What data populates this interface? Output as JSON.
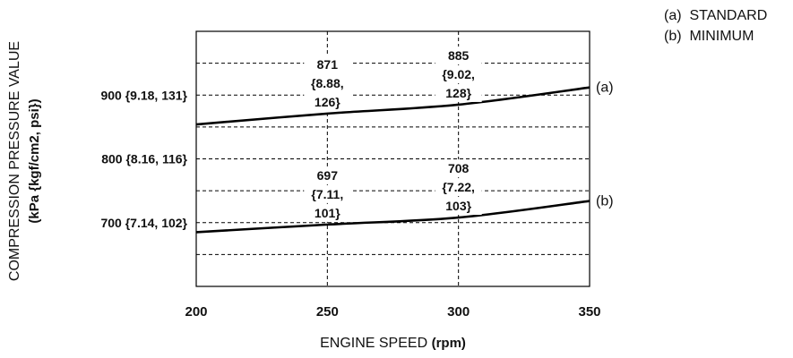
{
  "chart_data": {
    "type": "line",
    "x_axis": {
      "label": "ENGINE SPEED",
      "unit": "(rpm)",
      "range": [
        200,
        350
      ],
      "ticks": [
        "200",
        "250",
        "300",
        "350"
      ]
    },
    "y_axis": {
      "label": "COMPRESSION PRESSURE VALUE",
      "unit": "(kPa {kgf/cm2, psi})",
      "range": [
        600,
        1000
      ],
      "gridlines": [
        650,
        700,
        750,
        800,
        850,
        900,
        950
      ],
      "tick_labels": [
        {
          "value": 900,
          "text": "900 {9.18, 131}"
        },
        {
          "value": 800,
          "text": "800 {8.16, 116}"
        },
        {
          "value": 700,
          "text": "700 {7.14, 102}"
        }
      ]
    },
    "grid": {
      "horizontal": "dashed",
      "vertical": "dashed",
      "vertical_at": [
        250,
        300
      ]
    },
    "series": [
      {
        "id": "a",
        "tag": "(a)",
        "points": [
          [
            200,
            854
          ],
          [
            250,
            871
          ],
          [
            300,
            885
          ],
          [
            350,
            912
          ]
        ],
        "annotations": [
          {
            "x": 250,
            "lines": [
              "871",
              "{8.88,",
              "126}"
            ]
          },
          {
            "x": 300,
            "lines": [
              "885",
              "{9.02,",
              "128}"
            ]
          }
        ]
      },
      {
        "id": "b",
        "tag": "(b)",
        "points": [
          [
            200,
            685
          ],
          [
            250,
            697
          ],
          [
            300,
            708
          ],
          [
            350,
            734
          ]
        ],
        "annotations": [
          {
            "x": 250,
            "lines": [
              "697",
              "{7.11,",
              "101}"
            ]
          },
          {
            "x": 300,
            "lines": [
              "708",
              "{7.22,",
              "103}"
            ]
          }
        ]
      }
    ],
    "legend": {
      "placement": "top-right",
      "entries": [
        "(a)  STANDARD",
        "(b)  MINIMUM"
      ]
    },
    "colors": {
      "line": "#000000",
      "grid": "#000000"
    }
  }
}
